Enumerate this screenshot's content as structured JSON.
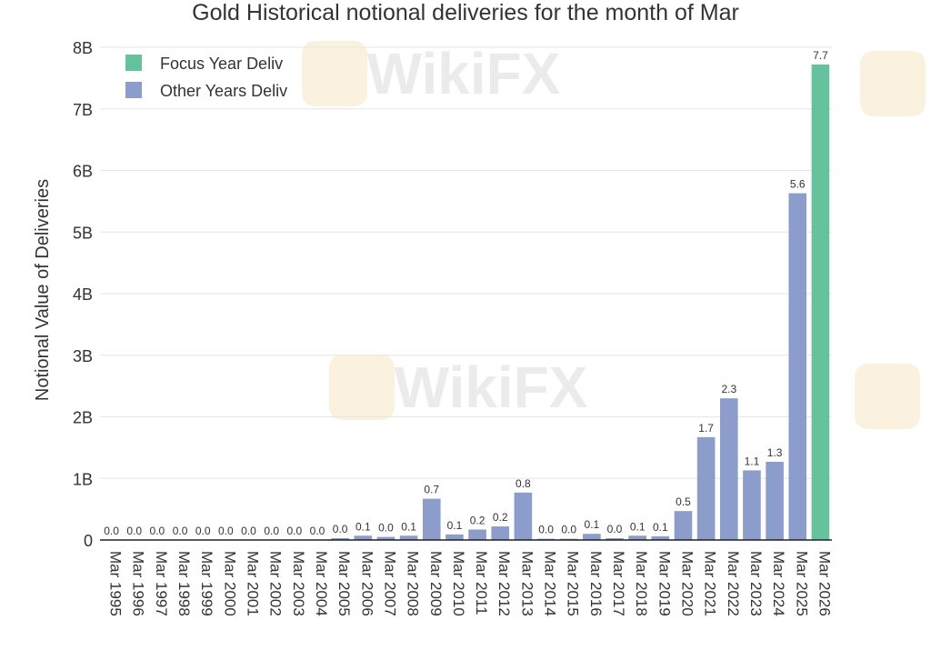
{
  "watermark": {
    "text": "WikiFX"
  },
  "colors": {
    "focus": "#66c29c",
    "other": "#8c9dcb",
    "grid": "#e6e6e6",
    "text": "#333333",
    "watermark": "#d8d8d8",
    "watermark_badge": "#f6e7c3"
  },
  "chart_data": {
    "type": "bar",
    "title": "Gold Historical notional deliveries for the month of Mar",
    "xlabel": "",
    "ylabel": "Notional Value of Deliveries",
    "ylim": [
      0,
      8
    ],
    "yticks": [
      0,
      1,
      2,
      3,
      4,
      5,
      6,
      7,
      8
    ],
    "ytick_labels": [
      "0",
      "1B",
      "2B",
      "3B",
      "4B",
      "5B",
      "6B",
      "7B",
      "8B"
    ],
    "grid": true,
    "legend": {
      "placement": "top-left",
      "entries": [
        {
          "name": "Focus Year Deliv",
          "color_key": "focus"
        },
        {
          "name": "Other Years Deliv",
          "color_key": "other"
        }
      ]
    },
    "categories": [
      "Mar 1995",
      "Mar 1996",
      "Mar 1997",
      "Mar 1998",
      "Mar 1999",
      "Mar 2000",
      "Mar 2001",
      "Mar 2002",
      "Mar 2003",
      "Mar 2004",
      "Mar 2005",
      "Mar 2006",
      "Mar 2007",
      "Mar 2008",
      "Mar 2009",
      "Mar 2010",
      "Mar 2011",
      "Mar 2012",
      "Mar 2013",
      "Mar 2014",
      "Mar 2015",
      "Mar 2016",
      "Mar 2017",
      "Mar 2018",
      "Mar 2019",
      "Mar 2020",
      "Mar 2021",
      "Mar 2022",
      "Mar 2023",
      "Mar 2024",
      "Mar 2025",
      "Mar 2026"
    ],
    "values": [
      0.0,
      0.0,
      0.0,
      0.0,
      0.0,
      0.0,
      0.0,
      0.0,
      0.0,
      0.0,
      0.03,
      0.07,
      0.05,
      0.07,
      0.67,
      0.09,
      0.17,
      0.22,
      0.77,
      0.02,
      0.02,
      0.1,
      0.03,
      0.07,
      0.06,
      0.47,
      1.67,
      2.3,
      1.13,
      1.27,
      5.63,
      7.72
    ],
    "labels": [
      "0.0",
      "0.0",
      "0.0",
      "0.0",
      "0.0",
      "0.0",
      "0.0",
      "0.0",
      "0.0",
      "0.0",
      "0.0",
      "0.1",
      "0.0",
      "0.1",
      "0.7",
      "0.1",
      "0.2",
      "0.2",
      "0.8",
      "0.0",
      "0.0",
      "0.1",
      "0.0",
      "0.1",
      "0.1",
      "0.5",
      "1.7",
      "2.3",
      "1.1",
      "1.3",
      "5.6",
      "7.7"
    ],
    "series": [
      {
        "name": "Focus Year Deliv",
        "focus_index": 31
      },
      {
        "name": "Other Years Deliv"
      }
    ]
  }
}
